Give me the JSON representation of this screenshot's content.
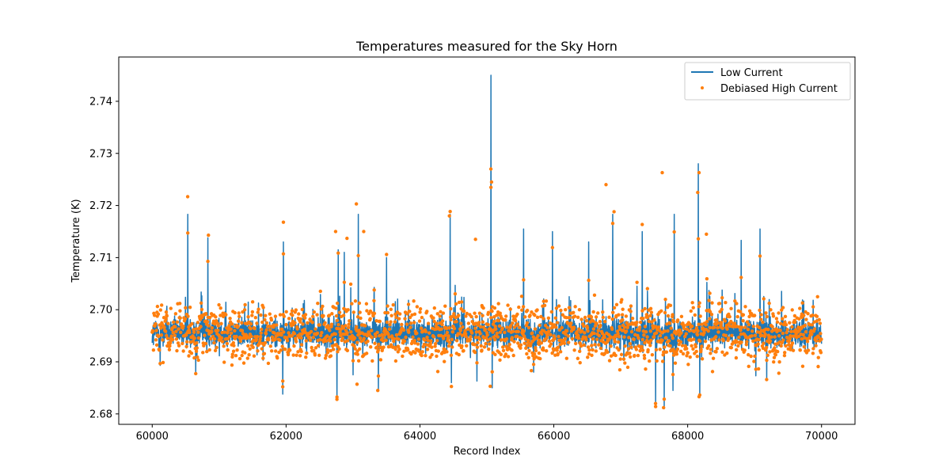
{
  "chart_data": {
    "type": "line",
    "title": "Temperatures measured for the Sky Horn",
    "xlabel": "Record Index",
    "ylabel": "Temperature (K)",
    "xlim": [
      59500,
      70500
    ],
    "ylim": [
      2.678,
      2.7485
    ],
    "xticks": [
      60000,
      62000,
      64000,
      66000,
      68000,
      70000
    ],
    "yticks": [
      2.68,
      2.69,
      2.7,
      2.71,
      2.72,
      2.73,
      2.74
    ],
    "ytick_labels": [
      "2.68",
      "2.69",
      "2.70",
      "2.71",
      "2.72",
      "2.73",
      "2.74"
    ],
    "legend_position": "top-right",
    "baseline": 2.6955,
    "series": [
      {
        "name": "Low Current",
        "style": "line",
        "color": "#1f77b4",
        "x_range": [
          60000,
          70000
        ],
        "noise_band": 0.0025,
        "peaks": [
          {
            "x": 60530,
            "y": 2.7183
          },
          {
            "x": 60830,
            "y": 2.7138
          },
          {
            "x": 61960,
            "y": 2.713
          },
          {
            "x": 62780,
            "y": 2.7115
          },
          {
            "x": 62870,
            "y": 2.711
          },
          {
            "x": 63080,
            "y": 2.7183
          },
          {
            "x": 63500,
            "y": 2.71
          },
          {
            "x": 64450,
            "y": 2.7183
          },
          {
            "x": 64850,
            "y": 2.713
          },
          {
            "x": 65060,
            "y": 2.745
          },
          {
            "x": 65550,
            "y": 2.7155
          },
          {
            "x": 65980,
            "y": 2.715
          },
          {
            "x": 66520,
            "y": 2.713
          },
          {
            "x": 66880,
            "y": 2.7183
          },
          {
            "x": 67320,
            "y": 2.715
          },
          {
            "x": 67650,
            "y": 2.7222
          },
          {
            "x": 67800,
            "y": 2.7183
          },
          {
            "x": 68160,
            "y": 2.728
          },
          {
            "x": 68800,
            "y": 2.7133
          },
          {
            "x": 69080,
            "y": 2.7155
          }
        ],
        "dips": [
          {
            "x": 60120,
            "y": 2.6893
          },
          {
            "x": 60650,
            "y": 2.688
          },
          {
            "x": 61950,
            "y": 2.6838
          },
          {
            "x": 62760,
            "y": 2.6826
          },
          {
            "x": 63000,
            "y": 2.6875
          },
          {
            "x": 63380,
            "y": 2.6846
          },
          {
            "x": 64470,
            "y": 2.686
          },
          {
            "x": 64850,
            "y": 2.6863
          },
          {
            "x": 65080,
            "y": 2.685
          },
          {
            "x": 65700,
            "y": 2.688
          },
          {
            "x": 67520,
            "y": 2.6815
          },
          {
            "x": 67650,
            "y": 2.681
          },
          {
            "x": 67780,
            "y": 2.6845
          },
          {
            "x": 68180,
            "y": 2.6833
          },
          {
            "x": 69180,
            "y": 2.6866
          },
          {
            "x": 69020,
            "y": 2.6873
          }
        ]
      },
      {
        "name": "Debiased High Current",
        "style": "scatter",
        "color": "#ff7f0e",
        "x_range": [
          60000,
          70000
        ],
        "highlighted_points": [
          {
            "x": 60530,
            "y": 2.7217
          },
          {
            "x": 60840,
            "y": 2.7143
          },
          {
            "x": 61960,
            "y": 2.7168
          },
          {
            "x": 61950,
            "y": 2.6852
          },
          {
            "x": 62740,
            "y": 2.715
          },
          {
            "x": 62910,
            "y": 2.7137
          },
          {
            "x": 63050,
            "y": 2.7203
          },
          {
            "x": 63160,
            "y": 2.715
          },
          {
            "x": 63060,
            "y": 2.6857
          },
          {
            "x": 63370,
            "y": 2.6845
          },
          {
            "x": 62760,
            "y": 2.6828
          },
          {
            "x": 64440,
            "y": 2.718
          },
          {
            "x": 64830,
            "y": 2.7135
          },
          {
            "x": 65060,
            "y": 2.727
          },
          {
            "x": 65070,
            "y": 2.7245
          },
          {
            "x": 65050,
            "y": 2.6853
          },
          {
            "x": 66780,
            "y": 2.724
          },
          {
            "x": 66900,
            "y": 2.7188
          },
          {
            "x": 67620,
            "y": 2.7263
          },
          {
            "x": 67520,
            "y": 2.682
          },
          {
            "x": 67640,
            "y": 2.6812
          },
          {
            "x": 68170,
            "y": 2.7263
          },
          {
            "x": 68150,
            "y": 2.7225
          },
          {
            "x": 68170,
            "y": 2.6833
          },
          {
            "x": 68280,
            "y": 2.7145
          },
          {
            "x": 69180,
            "y": 2.6866
          }
        ]
      }
    ]
  }
}
